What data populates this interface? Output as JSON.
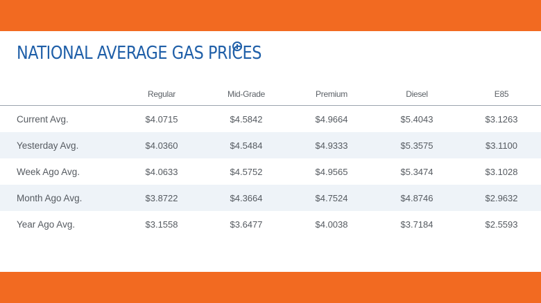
{
  "title": "NATIONAL AVERAGE GAS PRICES",
  "info_icon": "info-circle-icon",
  "colors": {
    "accent_bar": "#f26a21",
    "title": "#1f5fa8",
    "alt_row": "#eef3f8"
  },
  "table": {
    "columns": [
      "Regular",
      "Mid-Grade",
      "Premium",
      "Diesel",
      "E85"
    ],
    "rows": [
      {
        "label": "Current Avg.",
        "values": [
          "$4.0715",
          "$4.5842",
          "$4.9664",
          "$5.4043",
          "$3.1263"
        ]
      },
      {
        "label": "Yesterday Avg.",
        "values": [
          "$4.0360",
          "$4.5484",
          "$4.9333",
          "$5.3575",
          "$3.1100"
        ]
      },
      {
        "label": "Week Ago Avg.",
        "values": [
          "$4.0633",
          "$4.5752",
          "$4.9565",
          "$5.3474",
          "$3.1028"
        ]
      },
      {
        "label": "Month Ago Avg.",
        "values": [
          "$3.8722",
          "$4.3664",
          "$4.7524",
          "$4.8746",
          "$2.9632"
        ]
      },
      {
        "label": "Year Ago Avg.",
        "values": [
          "$3.1558",
          "$3.6477",
          "$4.0038",
          "$3.7184",
          "$2.5593"
        ]
      }
    ]
  }
}
